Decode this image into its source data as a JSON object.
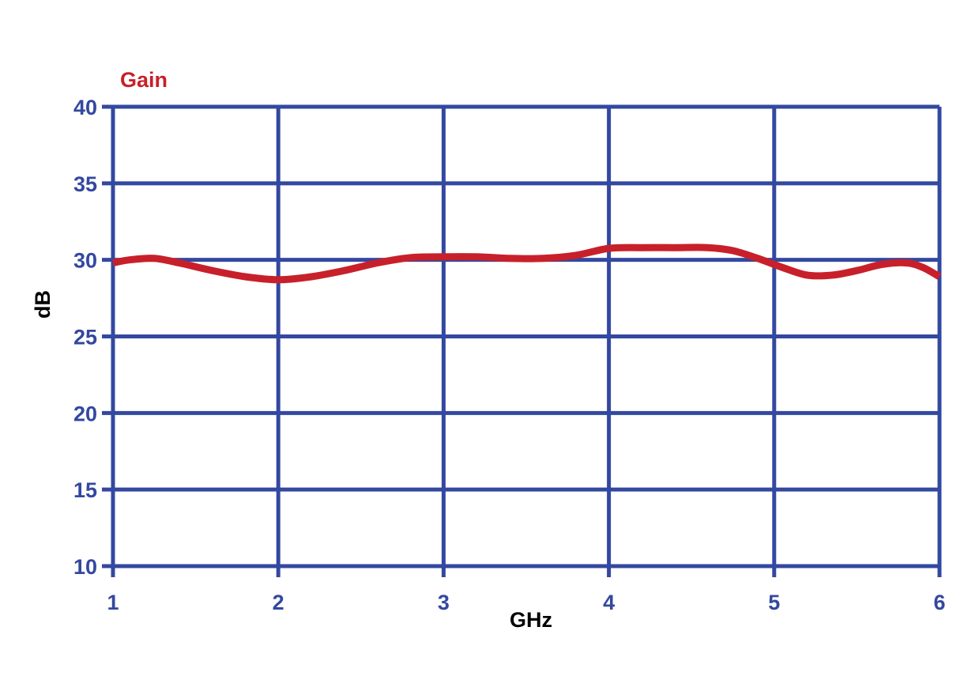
{
  "chart_data": {
    "type": "line",
    "xlabel": "GHz",
    "ylabel": "dB",
    "xlim": [
      1,
      6
    ],
    "ylim": [
      10,
      40
    ],
    "x_ticks": [
      1,
      2,
      3,
      4,
      5,
      6
    ],
    "y_ticks": [
      10,
      15,
      20,
      25,
      30,
      35,
      40
    ],
    "grid": true,
    "legend_position": "top-left",
    "colors": {
      "grid": "#3348a0",
      "tick_labels": "#3348a0",
      "axis_title": "#000000"
    },
    "series": [
      {
        "name": "Gain",
        "color": "#c8202a",
        "x": [
          1.0,
          1.1,
          1.25,
          1.4,
          1.6,
          1.8,
          2.0,
          2.2,
          2.4,
          2.6,
          2.8,
          3.0,
          3.2,
          3.4,
          3.6,
          3.8,
          4.0,
          4.2,
          4.4,
          4.6,
          4.75,
          4.9,
          5.05,
          5.2,
          5.35,
          5.5,
          5.65,
          5.8,
          5.9,
          6.0
        ],
        "y": [
          29.8,
          30.0,
          30.1,
          29.8,
          29.3,
          28.9,
          28.7,
          28.9,
          29.3,
          29.8,
          30.15,
          30.2,
          30.2,
          30.1,
          30.1,
          30.3,
          30.75,
          30.8,
          30.8,
          30.8,
          30.6,
          30.1,
          29.5,
          29.0,
          29.0,
          29.3,
          29.7,
          29.8,
          29.5,
          28.9
        ]
      }
    ]
  }
}
